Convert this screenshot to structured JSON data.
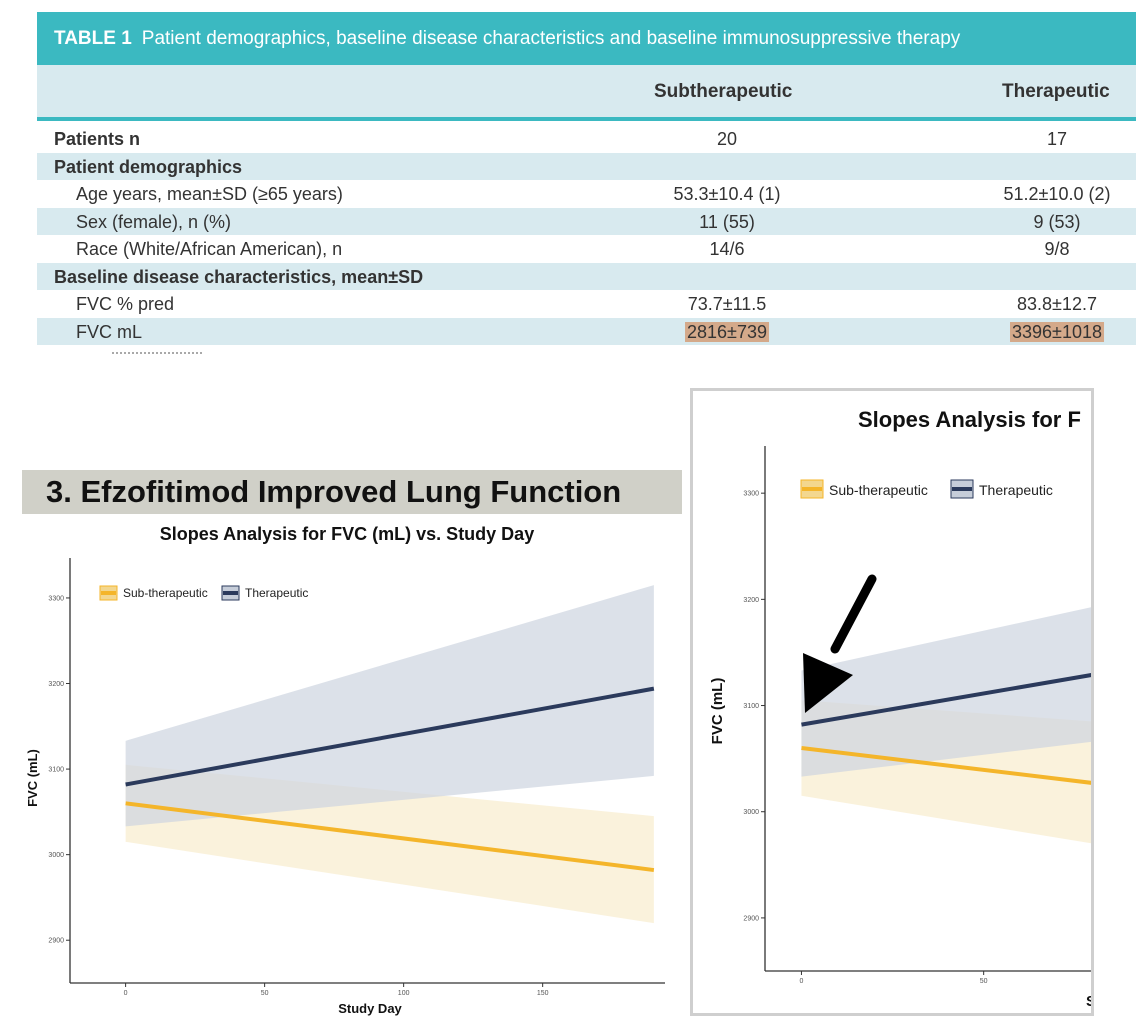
{
  "table": {
    "label": "TABLE 1",
    "title": "Patient demographics, baseline disease characteristics and baseline immunosuppressive therapy",
    "col1": "Subtherapeutic",
    "col2": "Therapeutic",
    "rows": [
      {
        "label": "Patients n",
        "v1": "20",
        "v2": "17"
      },
      {
        "label": "Patient demographics"
      },
      {
        "label": "Age years, mean±SD (≥65 years)",
        "v1": "53.3±10.4 (1)",
        "v2": "51.2±10.0 (2)"
      },
      {
        "label": "Sex (female), n (%)",
        "v1": "11 (55)",
        "v2": "9 (53)"
      },
      {
        "label": "Race (White/African American), n",
        "v1": "14/6",
        "v2": "9/8"
      },
      {
        "label": "Baseline disease characteristics, mean±SD"
      },
      {
        "label": "FVC % pred",
        "v1": "73.7±11.5",
        "v2": "83.8±12.7"
      },
      {
        "label": "FVC mL",
        "v1": "2816±739",
        "v2": "3396±1018"
      }
    ]
  },
  "section_heading": "3. Efzofitimod Improved Lung Function",
  "colors": {
    "teal": "#3bb9c1",
    "sub": "#f4b52a",
    "sub_band": "#f8eed0",
    "ther": "#2b3a5c",
    "ther_band": "#cdd4e0",
    "highlight": "#d4a98a"
  },
  "chart_data": [
    {
      "type": "line",
      "title": "Slopes Analysis for FVC (mL) vs. Study Day",
      "xlabel": "Study Day",
      "ylabel": "FVC (mL)",
      "xlim": [
        -20,
        194
      ],
      "ylim": [
        2850,
        3335
      ],
      "xticks": [
        "0",
        "50",
        "100",
        "150"
      ],
      "yticks": [
        "2900",
        "3000",
        "3100",
        "3200",
        "3300"
      ],
      "legend": [
        "Sub-therapeutic",
        "Therapeutic"
      ],
      "series": [
        {
          "name": "Sub-therapeutic",
          "x": [
            0,
            190
          ],
          "y": [
            3060,
            2982
          ],
          "lower": [
            3015,
            2920
          ],
          "upper": [
            3105,
            3045
          ]
        },
        {
          "name": "Therapeutic",
          "x": [
            0,
            190
          ],
          "y": [
            3082,
            3194
          ],
          "lower": [
            3033,
            3092
          ],
          "upper": [
            3133,
            3315
          ]
        }
      ]
    },
    {
      "type": "line",
      "title": "Slopes Analysis for F",
      "xlabel": "S",
      "ylabel": "FVC (mL)",
      "xlim": [
        -10,
        80
      ],
      "ylim": [
        2850,
        3335
      ],
      "xticks": [
        "0",
        "50"
      ],
      "yticks": [
        "2900",
        "3000",
        "3100",
        "3200",
        "3300"
      ],
      "legend": [
        "Sub-therapeutic",
        "Therapeutic"
      ],
      "series": [
        {
          "name": "Sub-therapeutic",
          "x": [
            0,
            80
          ],
          "y": [
            3060,
            3027
          ],
          "lower": [
            3015,
            2970
          ],
          "upper": [
            3105,
            3085
          ]
        },
        {
          "name": "Therapeutic",
          "x": [
            0,
            80
          ],
          "y": [
            3082,
            3129
          ],
          "lower": [
            3033,
            3066
          ],
          "upper": [
            3133,
            3193
          ]
        }
      ]
    }
  ]
}
